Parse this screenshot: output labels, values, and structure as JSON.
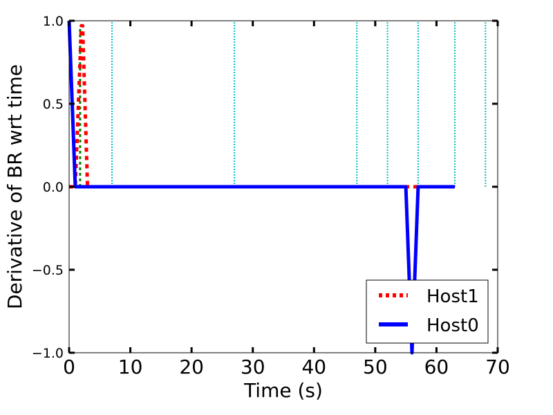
{
  "chart_data": {
    "type": "line",
    "title": "",
    "xlabel": "Time (s)",
    "ylabel": "Derivative of BR wrt time",
    "xlim": [
      0,
      70
    ],
    "ylim": [
      -1.0,
      1.0
    ],
    "xticks": [
      0,
      10,
      20,
      30,
      40,
      50,
      60,
      70
    ],
    "xtick_labels": [
      "0",
      "10",
      "20",
      "30",
      "40",
      "50",
      "60",
      "70"
    ],
    "yticks": [
      -1.0,
      -0.5,
      0.0,
      0.5,
      1.0
    ],
    "ytick_labels": [
      "−1.0",
      "−0.5",
      "0.0",
      "0.5",
      "1.0"
    ],
    "grid": false,
    "legend_position": "bottom-right",
    "series": [
      {
        "name": "Host1",
        "color": "#ff0000",
        "style": "dotted",
        "x": [
          0,
          1,
          2,
          2.2,
          3,
          10,
          20,
          30,
          40,
          50,
          55,
          56,
          57,
          60,
          63
        ],
        "y": [
          0,
          0,
          0.97,
          0.97,
          0,
          0,
          0,
          0,
          0,
          0,
          0,
          0,
          0,
          0,
          0
        ]
      },
      {
        "name": "Host0",
        "color": "#0000ff",
        "style": "solid",
        "x": [
          0,
          1,
          2,
          10,
          20,
          30,
          40,
          50,
          55,
          56,
          57,
          60,
          63
        ],
        "y": [
          1.0,
          0,
          0,
          0,
          0,
          0,
          0,
          0,
          0,
          -1.0,
          0,
          0,
          0
        ]
      },
      {
        "color": "#008000",
        "style": "dashed",
        "x": [
          1.8,
          1.8
        ],
        "y": [
          0,
          0.95
        ]
      }
    ],
    "vlines": {
      "color": "#00bfbf",
      "style": "dotted",
      "x": [
        7,
        27,
        47,
        52,
        57,
        63,
        68
      ],
      "y_range": [
        0,
        1.0
      ]
    },
    "legend": [
      {
        "label": "Host1",
        "color": "#ff0000",
        "style": "dotted"
      },
      {
        "label": "Host0",
        "color": "#0000ff",
        "style": "solid"
      }
    ]
  }
}
